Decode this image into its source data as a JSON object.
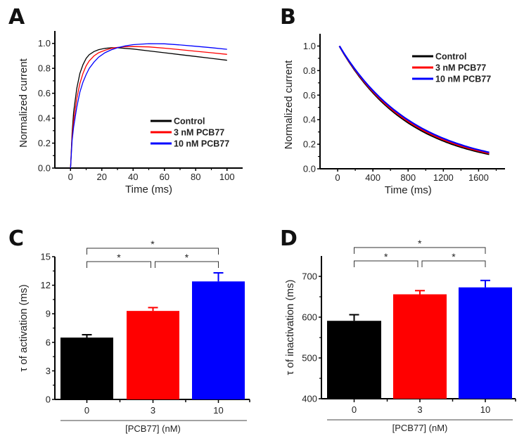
{
  "figure": {
    "panels": [
      "A",
      "B",
      "C",
      "D"
    ]
  },
  "chart_data": [
    {
      "panel": "A",
      "type": "line",
      "title": "",
      "xlabel": "Time (ms)",
      "ylabel": "Normalized current",
      "xlim": [
        -10,
        110
      ],
      "ylim": [
        0.0,
        1.1
      ],
      "xticks": [
        0,
        20,
        40,
        60,
        80,
        100
      ],
      "yticks": [
        0.0,
        0.2,
        0.4,
        0.6,
        0.8,
        1.0
      ],
      "xtick_labels": [
        "0",
        "20",
        "40",
        "60",
        "80",
        "100"
      ],
      "ytick_labels": [
        "0.0",
        "0.2",
        "0.4",
        "0.6",
        "0.8",
        "1.0"
      ],
      "legend": {
        "position": "bottom-right",
        "entries": [
          "Control",
          "3 nM PCB77",
          "10 nM PCB77"
        ]
      },
      "series": [
        {
          "name": "Control",
          "color": "#000000",
          "x": [
            0,
            1,
            2,
            4,
            6,
            8,
            10,
            12,
            15,
            18,
            22,
            26,
            30,
            35,
            40,
            50,
            60,
            70,
            80,
            90,
            100
          ],
          "y": [
            0.0,
            0.28,
            0.45,
            0.64,
            0.76,
            0.83,
            0.88,
            0.91,
            0.935,
            0.95,
            0.96,
            0.965,
            0.965,
            0.96,
            0.955,
            0.94,
            0.925,
            0.91,
            0.895,
            0.88,
            0.865
          ]
        },
        {
          "name": "3 nM PCB77",
          "color": "#ff0000",
          "x": [
            0,
            1,
            2,
            4,
            6,
            8,
            10,
            12,
            15,
            18,
            22,
            26,
            30,
            35,
            40,
            50,
            60,
            70,
            80,
            90,
            100
          ],
          "y": [
            0.0,
            0.25,
            0.38,
            0.56,
            0.68,
            0.76,
            0.82,
            0.86,
            0.9,
            0.925,
            0.945,
            0.96,
            0.968,
            0.973,
            0.975,
            0.972,
            0.962,
            0.95,
            0.937,
            0.925,
            0.912
          ]
        },
        {
          "name": "10 nM PCB77",
          "color": "#0000ff",
          "x": [
            0,
            1,
            2,
            4,
            6,
            8,
            10,
            12,
            15,
            18,
            22,
            26,
            30,
            35,
            40,
            50,
            60,
            70,
            80,
            90,
            100
          ],
          "y": [
            0.0,
            0.22,
            0.33,
            0.49,
            0.61,
            0.69,
            0.75,
            0.8,
            0.85,
            0.89,
            0.925,
            0.948,
            0.965,
            0.98,
            0.99,
            0.998,
            0.997,
            0.988,
            0.977,
            0.966,
            0.953
          ]
        }
      ]
    },
    {
      "panel": "B",
      "type": "line",
      "title": "",
      "xlabel": "Time (ms)",
      "ylabel": "Normalized current",
      "xlim": [
        -200,
        1900
      ],
      "ylim": [
        0.0,
        1.1
      ],
      "xticks": [
        0,
        400,
        800,
        1200,
        1600
      ],
      "yticks": [
        0.0,
        0.2,
        0.4,
        0.6,
        0.8,
        1.0
      ],
      "xtick_labels": [
        "0",
        "400",
        "800",
        "1200",
        "1600"
      ],
      "ytick_labels": [
        "0.0",
        "0.2",
        "0.4",
        "0.6",
        "0.8",
        "1.0"
      ],
      "legend": {
        "position": "top-right",
        "entries": [
          "Control",
          "3 nM PCB77",
          "10 nM PCB77"
        ]
      },
      "series": [
        {
          "name": "Control",
          "color": "#000000",
          "tau_ms": 795,
          "x_start": 20,
          "x_end": 1720,
          "y_end": 0.158
        },
        {
          "name": "3 nM PCB77",
          "color": "#ff0000",
          "tau_ms": 820,
          "x_start": 20,
          "x_end": 1720,
          "y_end": 0.16
        },
        {
          "name": "10 nM PCB77",
          "color": "#0000ff",
          "tau_ms": 845,
          "x_start": 20,
          "x_end": 1720,
          "y_end": 0.165
        }
      ]
    },
    {
      "panel": "C",
      "type": "bar",
      "title": "",
      "xlabel": "[PCB77]  (nM)",
      "ylabel": "τ of activation (ms)",
      "ylim": [
        0,
        15
      ],
      "yticks": [
        0,
        3,
        6,
        9,
        12,
        15
      ],
      "ytick_labels": [
        "0",
        "3",
        "6",
        "9",
        "12",
        "15"
      ],
      "categories": [
        "0",
        "3",
        "10"
      ],
      "values": [
        6.5,
        9.3,
        12.4
      ],
      "errors": [
        0.3,
        0.35,
        0.9
      ],
      "colors": [
        "#000000",
        "#ff0000",
        "#0000ff"
      ],
      "significance": [
        {
          "from": 0,
          "to": 1,
          "label": "*",
          "level": 1
        },
        {
          "from": 1,
          "to": 2,
          "label": "*",
          "level": 1
        },
        {
          "from": 0,
          "to": 2,
          "label": "*",
          "level": 2
        }
      ]
    },
    {
      "panel": "D",
      "type": "bar",
      "title": "",
      "xlabel": "[PCB77]  (nM)",
      "ylabel": "τ of inactivation (ms)",
      "ylim": [
        400,
        750
      ],
      "yticks": [
        400,
        500,
        600,
        700
      ],
      "ytick_labels": [
        "400",
        "500",
        "600",
        "700"
      ],
      "categories": [
        "0",
        "3",
        "10"
      ],
      "values": [
        591,
        656,
        673
      ],
      "errors": [
        15,
        9,
        17
      ],
      "colors": [
        "#000000",
        "#ff0000",
        "#0000ff"
      ],
      "significance": [
        {
          "from": 0,
          "to": 1,
          "label": "*",
          "level": 1
        },
        {
          "from": 1,
          "to": 2,
          "label": "*",
          "level": 1
        },
        {
          "from": 0,
          "to": 2,
          "label": "*",
          "level": 2
        }
      ]
    }
  ]
}
